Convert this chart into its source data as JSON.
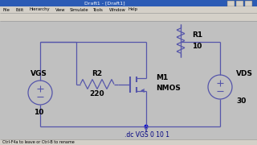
{
  "bg_color": "#c0c0c0",
  "titlebar_color": "#2b5bb5",
  "toolbar_color": "#d4d0c8",
  "circuit_bg": "#bebebe",
  "line_color": "#5555aa",
  "text_color": "#000000",
  "spice_color": "#000080",
  "dot_color": "#0000dd",
  "vgs_label": "VGS",
  "vgs_value": "10",
  "vds_label": "VDS",
  "vds_value": "30",
  "r1_label": "R1",
  "r1_value": "10",
  "r2_label": "R2",
  "r2_value": "220",
  "m1_label": "M1",
  "m1_sublabel": "NMOS",
  "spice_cmd": ".dc VGS 0 10 1",
  "title_text": "Draft1 - [Draft1]",
  "status_text": "Ctrl-F4a to leave or Ctrl-B to rename"
}
